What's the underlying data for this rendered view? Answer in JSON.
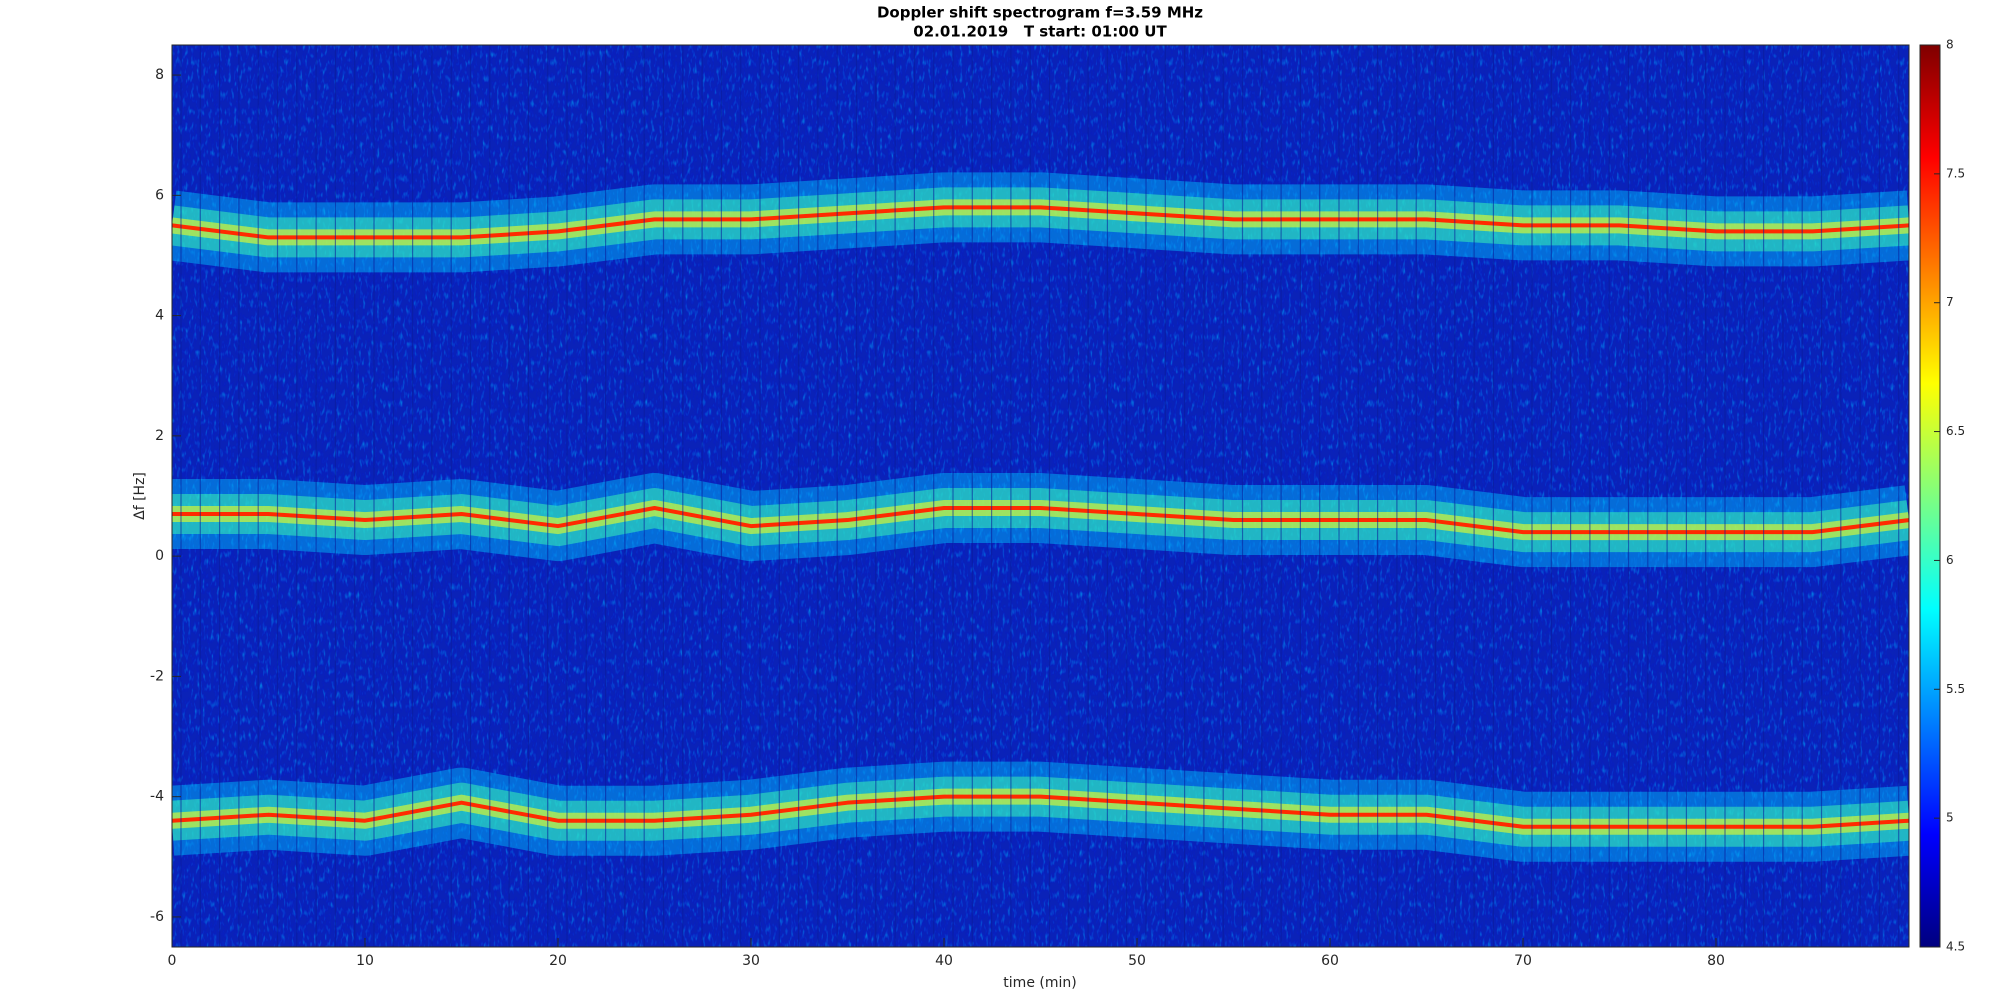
{
  "chart_data": {
    "type": "spectrogram",
    "title": "Doppler shift spectrogram f=3.59 MHz",
    "subtitle": "02.01.2019   T start: 01:00 UT",
    "xlabel": "time (min)",
    "ylabel": "Δf [Hz]",
    "x": [
      0,
      5,
      10,
      15,
      20,
      25,
      30,
      35,
      40,
      45,
      50,
      55,
      60,
      65,
      70,
      75,
      80,
      85,
      90
    ],
    "series": [
      {
        "color": "#ff2a00",
        "values": [
          5.5,
          5.3,
          5.3,
          5.3,
          5.4,
          5.6,
          5.6,
          5.7,
          5.8,
          5.8,
          5.7,
          5.6,
          5.6,
          5.6,
          5.5,
          5.5,
          5.4,
          5.4,
          5.5
        ]
      },
      {
        "color": "#ff2a00",
        "values": [
          0.7,
          0.7,
          0.6,
          0.7,
          0.5,
          0.8,
          0.5,
          0.6,
          0.8,
          0.8,
          0.7,
          0.6,
          0.6,
          0.6,
          0.4,
          0.4,
          0.4,
          0.4,
          0.6
        ]
      },
      {
        "color": "#ff2a00",
        "values": [
          -4.4,
          -4.3,
          -4.4,
          -4.1,
          -4.4,
          -4.4,
          -4.3,
          -4.1,
          -4.0,
          -4.0,
          -4.1,
          -4.2,
          -4.3,
          -4.3,
          -4.5,
          -4.5,
          -4.5,
          -4.5,
          -4.4
        ]
      }
    ],
    "xlim": [
      0,
      90
    ],
    "xticks": [
      0,
      10,
      20,
      30,
      40,
      50,
      60,
      70,
      80
    ],
    "ylim": [
      -6.5,
      8.5
    ],
    "yticks": [
      -6,
      -4,
      -2,
      0,
      2,
      4,
      6,
      8
    ],
    "colormap": "jet",
    "clim": [
      4.5,
      8
    ],
    "cticks": [
      4.5,
      5,
      5.5,
      6,
      6.5,
      7,
      7.5,
      8
    ]
  }
}
